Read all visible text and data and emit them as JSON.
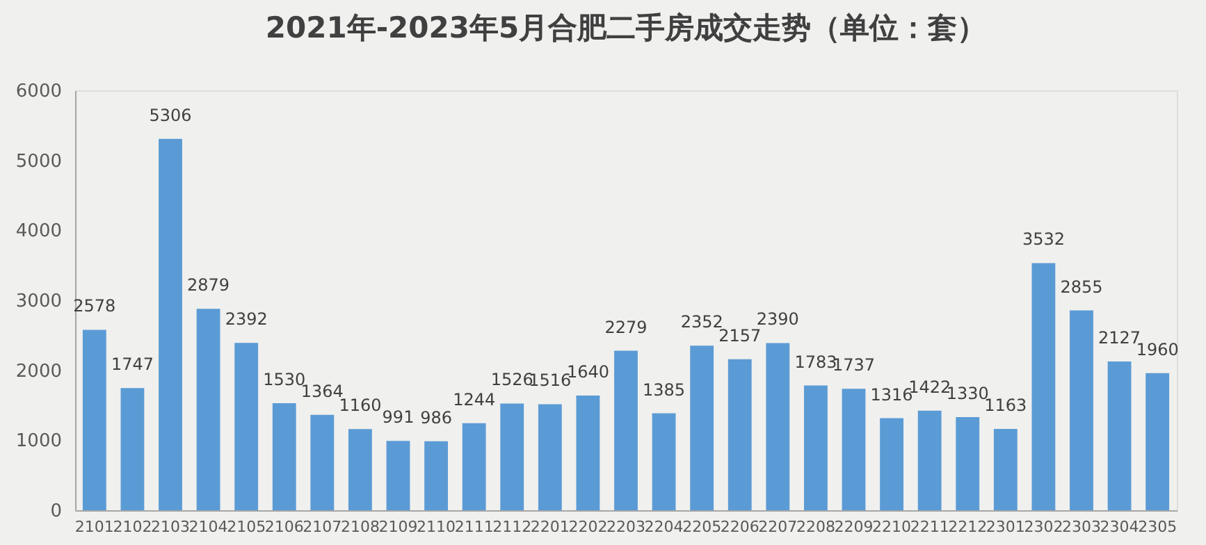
{
  "chart_data": {
    "type": "bar",
    "title": "2021年-2023年5月合肥二手房成交走势（单位：套）",
    "categories": [
      "2101",
      "2102",
      "2103",
      "2104",
      "2105",
      "2106",
      "2107",
      "2108",
      "2109",
      "2110",
      "2111",
      "2112",
      "2201",
      "2202",
      "2203",
      "2204",
      "2205",
      "2206",
      "2207",
      "2208",
      "2209",
      "2210",
      "2211",
      "2212",
      "2301",
      "2302",
      "2303",
      "2304",
      "2305"
    ],
    "values": [
      2578,
      1747,
      5306,
      2879,
      2392,
      1530,
      1364,
      1160,
      991,
      986,
      1244,
      1526,
      1516,
      1640,
      2279,
      1385,
      2352,
      2157,
      2390,
      1783,
      1737,
      1316,
      1422,
      1330,
      1163,
      3532,
      2855,
      2127,
      1960
    ],
    "color": "#5b9bd5",
    "ylim": [
      0,
      6000
    ],
    "yticks": [
      0,
      1000,
      2000,
      3000,
      4000,
      5000,
      6000
    ],
    "grid": false,
    "data_labels": true
  }
}
